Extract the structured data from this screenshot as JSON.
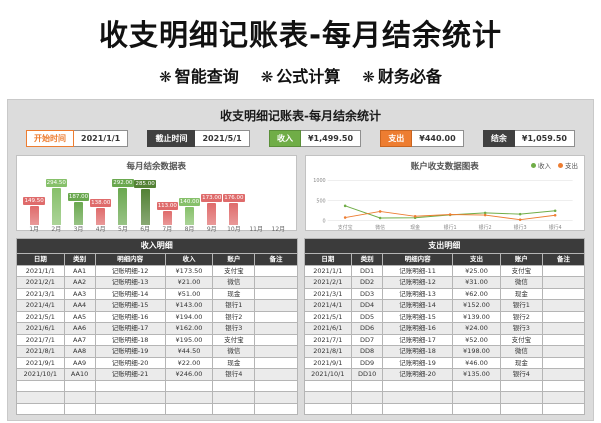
{
  "page": {
    "title": "收支明细记账表-每月结余统计",
    "star_icon": "❋",
    "subtitle_items": [
      "智能查询",
      "公式计算",
      "财务必备"
    ]
  },
  "colors": {
    "green": "#70ad47",
    "orange": "#ed7d31",
    "dark": "#404040",
    "red": "#df6b6b"
  },
  "sheet": {
    "title": "收支明细记账表-每月结余统计",
    "controls": {
      "start_label": "开始时间",
      "start_value": "2021/1/1",
      "end_label": "截止时间",
      "end_value": "2021/5/1",
      "income_label": "收入",
      "income_value": "¥1,499.50",
      "expense_label": "支出",
      "expense_value": "¥440.00",
      "balance_label": "结余",
      "balance_value": "¥1,059.50"
    }
  },
  "chart_data": [
    {
      "type": "bar",
      "title": "每月结余数据表",
      "categories": [
        "1月",
        "2月",
        "3月",
        "4月",
        "5月",
        "6月",
        "7月",
        "8月",
        "9月",
        "10月",
        "11月",
        "12月"
      ],
      "values": [
        149.5,
        294.5,
        187.0,
        138.0,
        292.0,
        285.0,
        113.0,
        140.0,
        173.0,
        176.0,
        null,
        null
      ],
      "colors": [
        "#df6b6b",
        "#86c06a",
        "#6aa84f",
        "#df6b6b",
        "#6aa84f",
        "#538135",
        "#df6b6b",
        "#86c06a",
        "#df6b6b",
        "#df6b6b",
        "#999999",
        "#999999"
      ],
      "ylim": [
        0,
        320
      ],
      "xlabel": "",
      "ylabel": ""
    },
    {
      "type": "line",
      "title": "账户收支数据图表",
      "categories": [
        "支付宝",
        "微信",
        "现金",
        "银行1",
        "银行2",
        "银行3",
        "银行4"
      ],
      "series": [
        {
          "name": "收入",
          "color": "#70ad47",
          "values": [
            368.5,
            65.5,
            73,
            143,
            194,
            162,
            246
          ]
        },
        {
          "name": "支出",
          "color": "#ed7d31",
          "values": [
            77,
            229,
            108,
            152,
            139,
            24,
            135
          ]
        }
      ],
      "ylim": [
        0,
        1000
      ],
      "yticks": [
        0,
        500,
        1000
      ],
      "legend_position": "top-right",
      "xlabel": "",
      "ylabel": ""
    }
  ],
  "income_table": {
    "title": "收入明细",
    "headers": [
      "日期",
      "类别",
      "明细内容",
      "收入",
      "账户",
      "备注"
    ],
    "empty_rows": 3,
    "rows": [
      [
        "2021/1/1",
        "AA1",
        "记账明细-12",
        "¥173.50",
        "支付宝",
        ""
      ],
      [
        "2021/2/1",
        "AA2",
        "记账明细-13",
        "¥21.00",
        "微信",
        ""
      ],
      [
        "2021/3/1",
        "AA3",
        "记账明细-14",
        "¥51.00",
        "现金",
        ""
      ],
      [
        "2021/4/1",
        "AA4",
        "记账明细-15",
        "¥143.00",
        "银行1",
        ""
      ],
      [
        "2021/5/1",
        "AA5",
        "记账明细-16",
        "¥194.00",
        "银行2",
        ""
      ],
      [
        "2021/6/1",
        "AA6",
        "记账明细-17",
        "¥162.00",
        "银行3",
        ""
      ],
      [
        "2021/7/1",
        "AA7",
        "记账明细-18",
        "¥195.00",
        "支付宝",
        ""
      ],
      [
        "2021/8/1",
        "AA8",
        "记账明细-19",
        "¥44.50",
        "微信",
        ""
      ],
      [
        "2021/9/1",
        "AA9",
        "记账明细-20",
        "¥22.00",
        "现金",
        ""
      ],
      [
        "2021/10/1",
        "AA10",
        "记账明细-21",
        "¥246.00",
        "银行4",
        ""
      ]
    ]
  },
  "expense_table": {
    "title": "支出明细",
    "headers": [
      "日期",
      "类别",
      "明细内容",
      "支出",
      "账户",
      "备注"
    ],
    "empty_rows": 3,
    "rows": [
      [
        "2021/1/1",
        "DD1",
        "记账明细-11",
        "¥25.00",
        "支付宝",
        ""
      ],
      [
        "2021/2/1",
        "DD2",
        "记账明细-12",
        "¥31.00",
        "微信",
        ""
      ],
      [
        "2021/3/1",
        "DD3",
        "记账明细-13",
        "¥62.00",
        "现金",
        ""
      ],
      [
        "2021/4/1",
        "DD4",
        "记账明细-14",
        "¥152.00",
        "银行1",
        ""
      ],
      [
        "2021/5/1",
        "DD5",
        "记账明细-15",
        "¥139.00",
        "银行2",
        ""
      ],
      [
        "2021/6/1",
        "DD6",
        "记账明细-16",
        "¥24.00",
        "银行3",
        ""
      ],
      [
        "2021/7/1",
        "DD7",
        "记账明细-17",
        "¥52.00",
        "支付宝",
        ""
      ],
      [
        "2021/8/1",
        "DD8",
        "记账明细-18",
        "¥198.00",
        "微信",
        ""
      ],
      [
        "2021/9/1",
        "DD9",
        "记账明细-19",
        "¥46.00",
        "现金",
        ""
      ],
      [
        "2021/10/1",
        "DD10",
        "记账明细-20",
        "¥135.00",
        "银行4",
        ""
      ]
    ]
  }
}
